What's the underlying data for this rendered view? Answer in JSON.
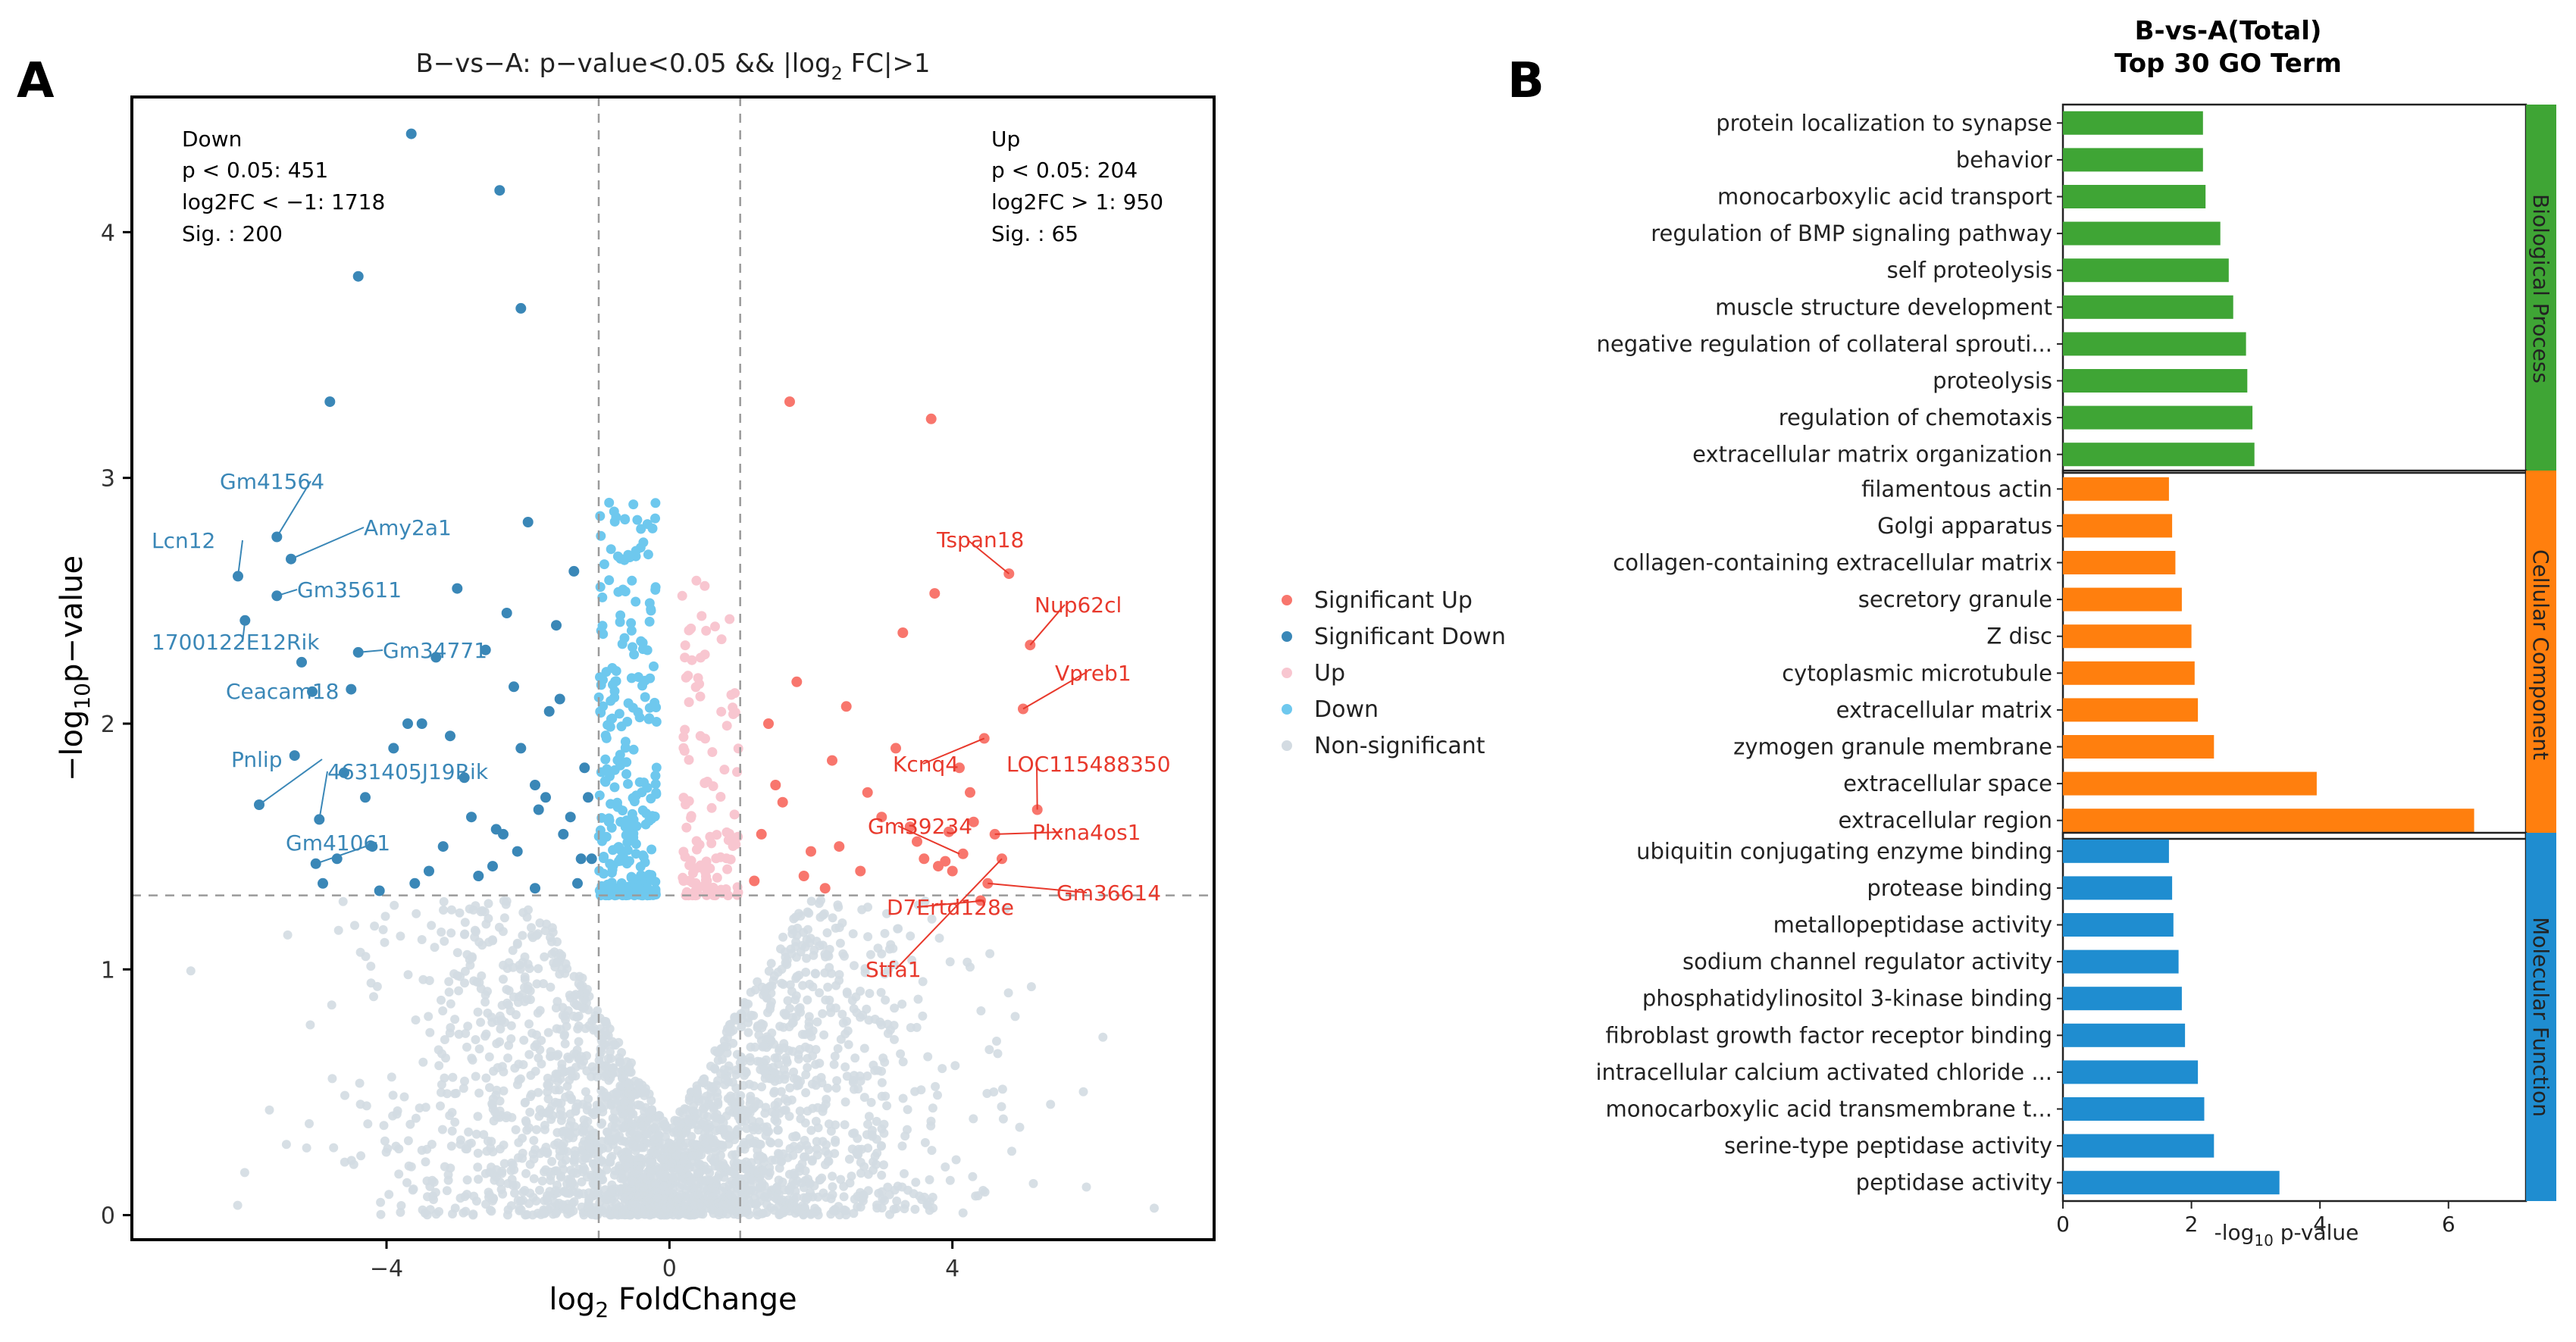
{
  "panelA": {
    "letter": "A",
    "title_prefix": "B−vs−A: p−value<0.05 && |log",
    "title_sub": "2",
    "title_suffix": " FC|>1",
    "xlabel_prefix": "log",
    "xlabel_sub": "2",
    "xlabel_suffix": " FoldChange",
    "ylabel_prefix": "−log",
    "ylabel_sub": "10",
    "ylabel_suffix": "p−value",
    "down_box": [
      "Down",
      "p < 0.05: 451",
      "log2FC < −1: 1718",
      "Sig. : 200"
    ],
    "up_box": [
      "Up",
      "p < 0.05: 204",
      "log2FC > 1: 950",
      "Sig. : 65"
    ],
    "legend": [
      {
        "label": "Significant Up",
        "color": "#f8766d"
      },
      {
        "label": "Significant Down",
        "color": "#3a87b7"
      },
      {
        "label": "Up",
        "color": "#f8c6d0"
      },
      {
        "label": "Down",
        "color": "#6ec8ee"
      },
      {
        "label": "Non-significant",
        "color": "#d3dbe2"
      }
    ]
  },
  "panelB": {
    "letter": "B",
    "title_line1": "B-vs-A(Total)",
    "title_line2": "Top 30 GO Term",
    "xlabel_prefix": "-log",
    "xlabel_sub": "10",
    "xlabel_suffix": " p-value"
  },
  "chart_data": [
    {
      "type": "scatter",
      "title": "B−vs−A: p−value<0.05 && |log2 FC|>1",
      "xlabel": "log2 FoldChange",
      "ylabel": "−log10p−value",
      "xlim": [
        -7.6,
        7.7
      ],
      "ylim": [
        -0.1,
        4.55
      ],
      "xticks": [
        -4,
        0,
        4
      ],
      "yticks": [
        0,
        1,
        2,
        3,
        4
      ],
      "thresholds": {
        "x": [
          -1,
          1
        ],
        "y": 1.301
      },
      "grid": false,
      "series": [
        {
          "name": "Significant Down",
          "color": "#3a87b7",
          "x": [
            -3.65,
            -2.4,
            -4.4,
            -2.1,
            -4.8,
            -5.55,
            -5.35,
            -6.1,
            -5.55,
            -6.0,
            -4.4,
            -5.05,
            -5.2,
            -5.8,
            -4.95,
            -5.0,
            -5.3,
            -4.9,
            -4.7,
            -4.5,
            -4.2,
            -3.9,
            -3.6,
            -3.3,
            -3.0,
            -2.8,
            -2.5,
            -2.2,
            -1.9,
            -1.7,
            -1.5,
            -1.3,
            -1.2,
            -1.1,
            -2.0,
            -2.3,
            -2.6,
            -3.1,
            -3.4,
            -3.7,
            -4.1,
            -4.3,
            -4.6,
            -3.2,
            -2.7,
            -2.1,
            -1.6,
            -1.4,
            -1.25,
            -1.15,
            -3.5,
            -2.9,
            -2.35,
            -1.85,
            -1.55,
            -1.35,
            -1.9,
            -2.15,
            -2.45,
            -1.75
          ],
          "y": [
            4.4,
            4.17,
            3.82,
            3.69,
            3.31,
            2.76,
            2.67,
            2.6,
            2.52,
            2.42,
            2.29,
            2.13,
            2.25,
            1.67,
            1.61,
            1.43,
            1.87,
            1.35,
            1.45,
            2.14,
            1.5,
            1.9,
            1.35,
            2.27,
            2.55,
            1.62,
            1.42,
            2.15,
            1.75,
            2.05,
            1.55,
            1.35,
            1.82,
            1.45,
            2.82,
            2.45,
            2.3,
            1.95,
            1.4,
            2.0,
            1.32,
            1.7,
            1.8,
            1.5,
            1.38,
            1.9,
            2.4,
            1.62,
            1.45,
            1.7,
            2.0,
            1.78,
            1.55,
            1.65,
            2.1,
            2.62,
            1.33,
            1.48,
            1.57,
            1.7
          ]
        },
        {
          "name": "Significant Up",
          "color": "#f8766d",
          "x": [
            1.7,
            3.7,
            4.8,
            3.75,
            3.3,
            5.1,
            5.0,
            4.45,
            4.1,
            5.2,
            4.15,
            3.9,
            3.8,
            4.6,
            4.5,
            4.4,
            4.7,
            2.5,
            1.8,
            1.3,
            1.5,
            2.0,
            2.3,
            2.7,
            3.0,
            3.2,
            3.5,
            4.0,
            4.3,
            1.2,
            1.4,
            1.6,
            2.2,
            2.8,
            3.4,
            3.6,
            1.9,
            2.4,
            4.25,
            3.95
          ],
          "y": [
            3.31,
            3.24,
            2.61,
            2.53,
            2.37,
            2.32,
            2.06,
            1.94,
            1.82,
            1.65,
            1.47,
            1.44,
            1.42,
            1.55,
            1.35,
            1.28,
            1.45,
            2.07,
            2.17,
            1.55,
            1.75,
            1.48,
            1.85,
            1.4,
            1.62,
            1.9,
            1.52,
            1.4,
            1.6,
            1.36,
            2.0,
            1.68,
            1.33,
            1.72,
            1.58,
            1.45,
            1.38,
            1.5,
            1.72,
            1.56
          ]
        }
      ],
      "annotations": {
        "down": [
          {
            "label": "Gm41564",
            "x": -5.55,
            "y": 2.76
          },
          {
            "label": "Amy2a1",
            "x": -5.35,
            "y": 2.67
          },
          {
            "label": "Lcn12",
            "x": -6.1,
            "y": 2.6
          },
          {
            "label": "Gm35611",
            "x": -5.55,
            "y": 2.52
          },
          {
            "label": "1700122E12Rik",
            "x": -6.0,
            "y": 2.42
          },
          {
            "label": "Gm34771",
            "x": -4.4,
            "y": 2.29
          },
          {
            "label": "Ceacam18",
            "x": -5.05,
            "y": 2.13
          },
          {
            "label": "Pnlip",
            "x": -5.8,
            "y": 1.67
          },
          {
            "label": "4631405J19Rik",
            "x": -4.95,
            "y": 1.61
          },
          {
            "label": "Gm41061",
            "x": -5.0,
            "y": 1.43
          }
        ],
        "up": [
          {
            "label": "Tspan18",
            "x": 4.8,
            "y": 2.61
          },
          {
            "label": "Nup62cl",
            "x": 5.1,
            "y": 2.32
          },
          {
            "label": "Vpreb1",
            "x": 5.0,
            "y": 2.06
          },
          {
            "label": "Kcnq4",
            "x": 4.45,
            "y": 1.94
          },
          {
            "label": "LOC115488350",
            "x": 5.2,
            "y": 1.65
          },
          {
            "label": "Gm39234",
            "x": 4.1,
            "y": 1.47
          },
          {
            "label": "Plxna4os1",
            "x": 4.6,
            "y": 1.55
          },
          {
            "label": "Gm36614",
            "x": 4.5,
            "y": 1.35
          },
          {
            "label": "D7Ertd128e",
            "x": 4.45,
            "y": 1.28
          },
          {
            "label": "Stfa1",
            "x": 4.7,
            "y": 1.45
          }
        ]
      }
    },
    {
      "type": "bar",
      "orientation": "horizontal",
      "title": "B-vs-A(Total) Top 30 GO Term",
      "xlabel": "-log10 p-value",
      "xlim": [
        0,
        7.1
      ],
      "xticks": [
        0,
        2,
        4,
        6
      ],
      "groups": [
        {
          "name": "Biological Process",
          "color": "#3fa535",
          "categories": [
            "protein localization to synapse",
            "behavior",
            "monocarboxylic acid transport",
            "regulation of BMP signaling pathway",
            "self proteolysis",
            "muscle structure development",
            "negative regulation of collateral sprouti...",
            "proteolysis",
            "regulation of chemotaxis",
            "extracellular matrix organization"
          ],
          "values": [
            2.18,
            2.18,
            2.22,
            2.45,
            2.58,
            2.65,
            2.85,
            2.87,
            2.95,
            2.98
          ]
        },
        {
          "name": "Cellular Component",
          "color": "#ff7f0e",
          "categories": [
            "filamentous actin",
            "Golgi apparatus",
            "collagen-containing extracellular matrix",
            "secretory granule",
            "Z disc",
            "cytoplasmic microtubule",
            "extracellular matrix",
            "zymogen granule membrane",
            "extracellular space",
            "extracellular region"
          ],
          "values": [
            1.65,
            1.7,
            1.75,
            1.85,
            2.0,
            2.05,
            2.1,
            2.35,
            3.95,
            6.4
          ]
        },
        {
          "name": "Molecular Function",
          "color": "#1f8dd0",
          "categories": [
            "ubiquitin conjugating enzyme binding",
            "protease binding",
            "metallopeptidase activity",
            "sodium channel regulator activity",
            "phosphatidylinositol 3-kinase binding",
            "fibroblast growth factor receptor binding",
            "intracellular calcium activated chloride ...",
            "monocarboxylic acid transmembrane t...",
            "serine-type peptidase activity",
            "peptidase activity"
          ],
          "values": [
            1.65,
            1.7,
            1.72,
            1.8,
            1.85,
            1.9,
            2.1,
            2.2,
            2.35,
            3.37
          ]
        }
      ]
    }
  ]
}
